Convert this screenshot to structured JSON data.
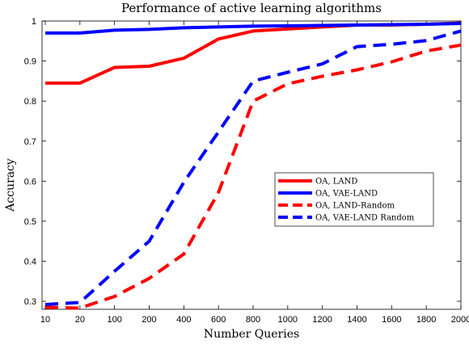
{
  "chart_data": {
    "type": "line",
    "title": "Performance of active learning algorithms",
    "xlabel": "Number Queries",
    "ylabel": "Accuracy",
    "x": [
      "10",
      "20",
      "100",
      "200",
      "400",
      "600",
      "800",
      "1000",
      "1200",
      "1400",
      "1600",
      "1800",
      "2000"
    ],
    "ylim": [
      0.28,
      1.0
    ],
    "yticks": [
      "0.3",
      "0.4",
      "0.5",
      "0.6",
      "0.7",
      "0.8",
      "0.9",
      "1"
    ],
    "grid": false,
    "legend_position": "center-right",
    "series": [
      {
        "name": "OA, LAND",
        "color": "#ff0000",
        "style": "solid",
        "values": [
          0.845,
          0.845,
          0.884,
          0.887,
          0.907,
          0.955,
          0.975,
          0.98,
          0.985,
          0.99,
          0.99,
          0.992,
          0.995
        ]
      },
      {
        "name": "OA, VAE-LAND",
        "color": "#0000ff",
        "style": "solid",
        "values": [
          0.97,
          0.97,
          0.977,
          0.979,
          0.983,
          0.985,
          0.987,
          0.988,
          0.989,
          0.99,
          0.991,
          0.992,
          0.994
        ]
      },
      {
        "name": "OA, LAND-Random",
        "color": "#ff0000",
        "style": "dashed",
        "values": [
          0.285,
          0.283,
          0.312,
          0.357,
          0.418,
          0.572,
          0.8,
          0.843,
          0.862,
          0.878,
          0.898,
          0.925,
          0.94
        ]
      },
      {
        "name": "OA, VAE-LAND Random",
        "color": "#0000ff",
        "style": "dashed",
        "values": [
          0.292,
          0.297,
          0.375,
          0.45,
          0.597,
          0.723,
          0.85,
          0.872,
          0.893,
          0.936,
          0.942,
          0.951,
          0.975
        ]
      }
    ]
  }
}
